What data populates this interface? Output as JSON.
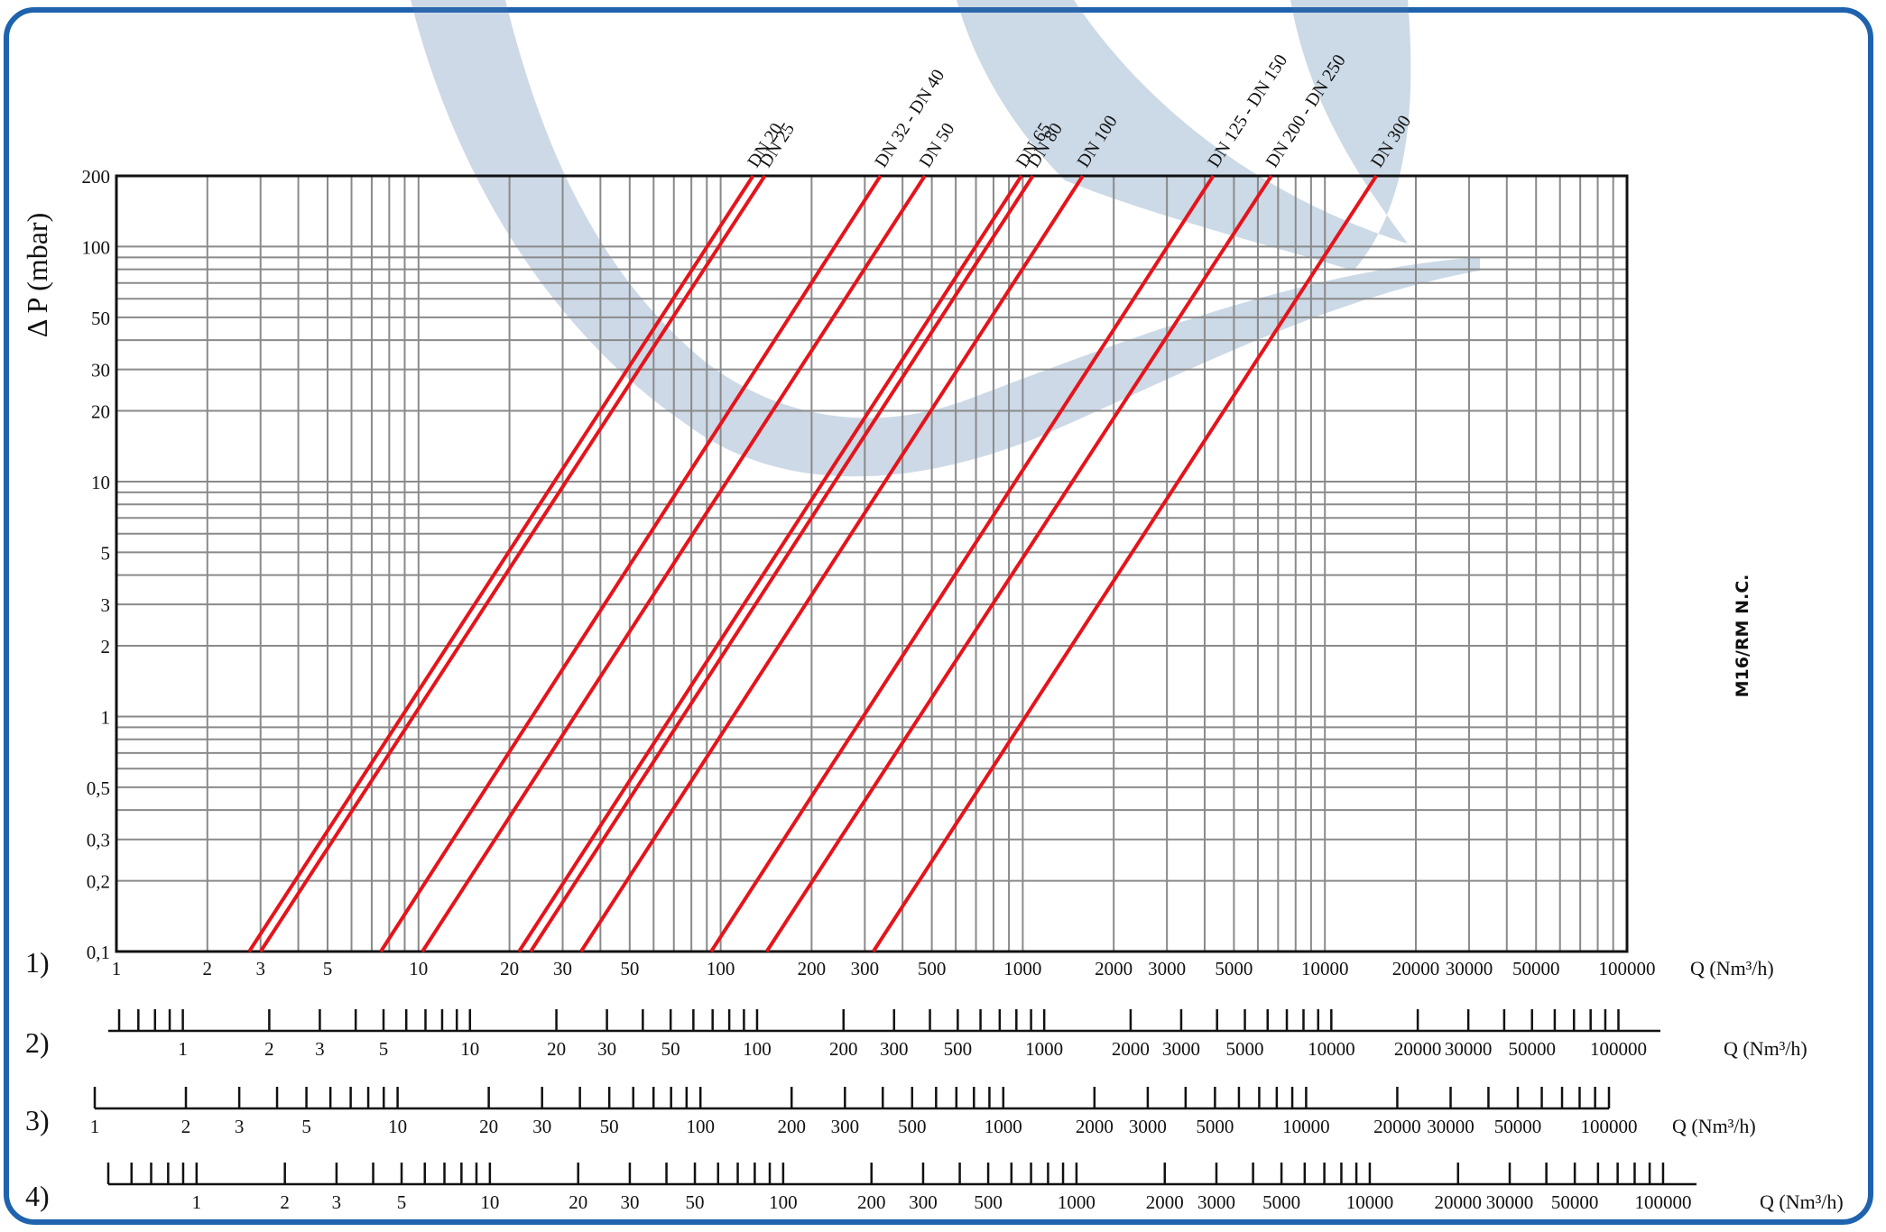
{
  "chart_data": {
    "type": "line",
    "title": "",
    "ylabel": "Δ P (mbar)",
    "xlabel": "Q (Nm³/h)",
    "side_label": "M16/RM N.C.",
    "x_scale": "log",
    "y_scale": "log",
    "xlim": [
      1,
      100000
    ],
    "ylim": [
      0.1,
      200
    ],
    "grid": true,
    "y_ticks": [
      {
        "value": 0.1,
        "label": "0,1"
      },
      {
        "value": 0.2,
        "label": "0,2"
      },
      {
        "value": 0.3,
        "label": "0,3"
      },
      {
        "value": 0.5,
        "label": "0,5"
      },
      {
        "value": 1,
        "label": "1"
      },
      {
        "value": 2,
        "label": "2"
      },
      {
        "value": 3,
        "label": "3"
      },
      {
        "value": 5,
        "label": "5"
      },
      {
        "value": 10,
        "label": "10"
      },
      {
        "value": 20,
        "label": "20"
      },
      {
        "value": 30,
        "label": "30"
      },
      {
        "value": 50,
        "label": "50"
      },
      {
        "value": 100,
        "label": "100"
      },
      {
        "value": 200,
        "label": "200"
      }
    ],
    "x_tick_labels": [
      {
        "value": 1,
        "label": "1"
      },
      {
        "value": 2,
        "label": "2"
      },
      {
        "value": 3,
        "label": "3"
      },
      {
        "value": 5,
        "label": "5"
      },
      {
        "value": 10,
        "label": "10"
      },
      {
        "value": 20,
        "label": "20"
      },
      {
        "value": 30,
        "label": "30"
      },
      {
        "value": 50,
        "label": "50"
      },
      {
        "value": 100,
        "label": "100"
      },
      {
        "value": 200,
        "label": "200"
      },
      {
        "value": 300,
        "label": "300"
      },
      {
        "value": 500,
        "label": "500"
      },
      {
        "value": 1000,
        "label": "1000"
      },
      {
        "value": 2000,
        "label": "2000"
      },
      {
        "value": 3000,
        "label": "3000"
      },
      {
        "value": 5000,
        "label": "5000"
      },
      {
        "value": 10000,
        "label": "10000"
      },
      {
        "value": 20000,
        "label": "20000"
      },
      {
        "value": 30000,
        "label": "30000"
      },
      {
        "value": 50000,
        "label": "50000"
      },
      {
        "value": 100000,
        "label": "100000"
      }
    ],
    "series": [
      {
        "name": "DN 20",
        "color": "#e5141b",
        "points": [
          [
            2.75,
            0.1
          ],
          [
            128,
            200
          ]
        ]
      },
      {
        "name": "DN 25",
        "color": "#e5141b",
        "points": [
          [
            3.0,
            0.1
          ],
          [
            140,
            200
          ]
        ]
      },
      {
        "name": "DN 32 - DN 40",
        "color": "#e5141b",
        "points": [
          [
            7.5,
            0.1
          ],
          [
            338,
            200
          ]
        ]
      },
      {
        "name": "DN 50",
        "color": "#e5141b",
        "points": [
          [
            10.3,
            0.1
          ],
          [
            474,
            200
          ]
        ]
      },
      {
        "name": "DN 65",
        "color": "#e5141b",
        "points": [
          [
            21.5,
            0.1
          ],
          [
            990,
            200
          ]
        ]
      },
      {
        "name": "DN 80",
        "color": "#e5141b",
        "points": [
          [
            23.5,
            0.1
          ],
          [
            1080,
            200
          ]
        ]
      },
      {
        "name": "DN 100",
        "color": "#e5141b",
        "points": [
          [
            34.5,
            0.1
          ],
          [
            1580,
            200
          ]
        ]
      },
      {
        "name": "DN 125 - DN 150",
        "color": "#e5141b",
        "points": [
          [
            93,
            0.1
          ],
          [
            4270,
            200
          ]
        ]
      },
      {
        "name": "DN 200 - DN 250",
        "color": "#e5141b",
        "points": [
          [
            142,
            0.1
          ],
          [
            6650,
            200
          ]
        ]
      },
      {
        "name": "DN 300",
        "color": "#e5141b",
        "points": [
          [
            320,
            0.1
          ],
          [
            14800,
            200
          ]
        ]
      }
    ],
    "scales": [
      {
        "label": "1)",
        "unit": "Q (Nm³/h)",
        "min": 1,
        "max": 100000,
        "tick_labels": [
          "1",
          "2",
          "3",
          "5",
          "10",
          "20",
          "30",
          "50",
          "100",
          "200",
          "300",
          "500",
          "1000",
          "2000",
          "3000",
          "5000",
          "10000",
          "20000",
          "30000",
          "50000",
          "100000"
        ]
      },
      {
        "label": "2)",
        "unit": "Q (Nm³/h)",
        "min": 0.55,
        "max": 140000,
        "tick_labels": [
          "1",
          "2",
          "3",
          "5",
          "10",
          "20",
          "30",
          "50",
          "100",
          "200",
          "300",
          "500",
          "1000",
          "2000",
          "3000",
          "5000",
          "10000",
          "20000",
          "30000",
          "50000",
          "100000"
        ]
      },
      {
        "label": "3)",
        "unit": "Q (Nm³/h)",
        "min": 1,
        "max": 100000,
        "tick_labels": [
          "1",
          "2",
          "3",
          "5",
          "10",
          "20",
          "30",
          "50",
          "100",
          "200",
          "300",
          "500",
          "1000",
          "2000",
          "3000",
          "5000",
          "10000",
          "20000",
          "30000",
          "50000",
          "100000"
        ]
      },
      {
        "label": "4)",
        "unit": "Q (Nm³/h)",
        "min": 0.5,
        "max": 130000,
        "tick_labels": [
          "1",
          "2",
          "3",
          "5",
          "10",
          "20",
          "30",
          "50",
          "100",
          "200",
          "300",
          "500",
          "1000",
          "2000",
          "3000",
          "5000",
          "10000",
          "20000",
          "30000",
          "50000",
          "100000"
        ]
      }
    ]
  }
}
